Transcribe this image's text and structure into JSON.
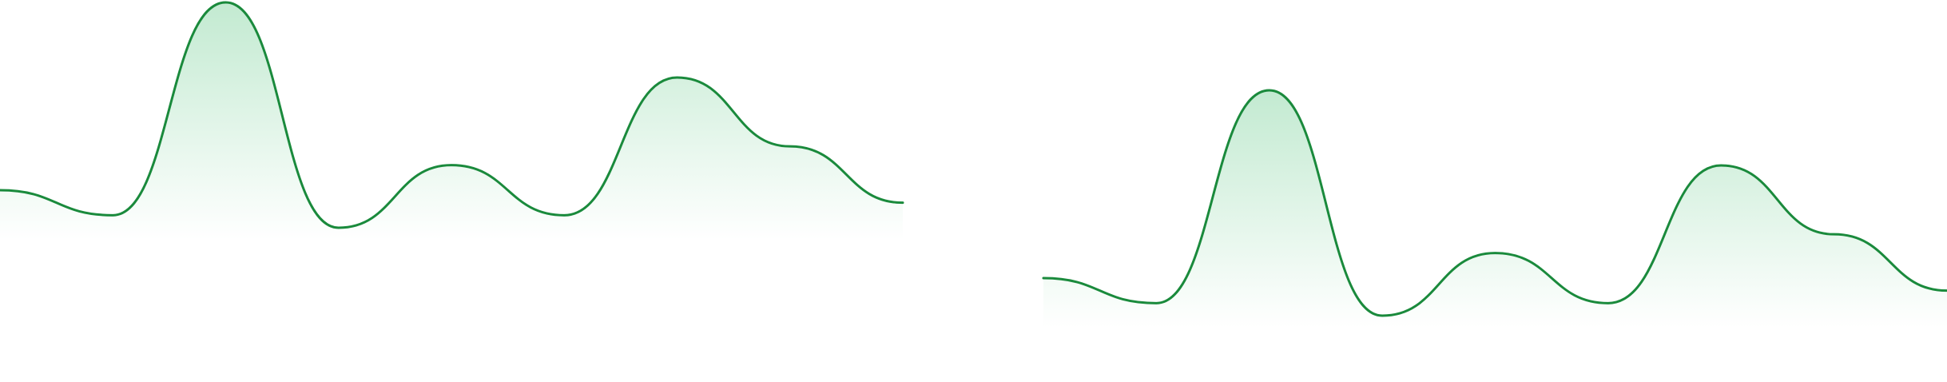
{
  "chart_data": [
    {
      "type": "area",
      "smooth": true,
      "grid": false,
      "legend": "none",
      "axes_visible": false,
      "x": [
        0,
        1,
        2,
        3,
        4,
        5,
        6,
        7,
        8
      ],
      "series": [
        {
          "values": [
            0.6,
            0.4,
            2.1,
            0.3,
            0.8,
            0.4,
            1.5,
            0.95,
            0.5
          ]
        }
      ],
      "ylim": [
        0,
        2.1
      ],
      "line_color": "#1a8a3c",
      "fill_color": "#27b45a"
    },
    {
      "type": "area",
      "smooth": true,
      "grid": false,
      "legend": "none",
      "axes_visible": false,
      "x": [
        0,
        1,
        2,
        3,
        4,
        5,
        6,
        7,
        8
      ],
      "series": [
        {
          "values": [
            0.6,
            0.4,
            2.1,
            0.3,
            0.8,
            0.4,
            1.5,
            0.95,
            0.5
          ]
        }
      ],
      "ylim": [
        0,
        2.1
      ],
      "line_color": "#1a8a3c",
      "fill_color": "#27b45a"
    }
  ]
}
